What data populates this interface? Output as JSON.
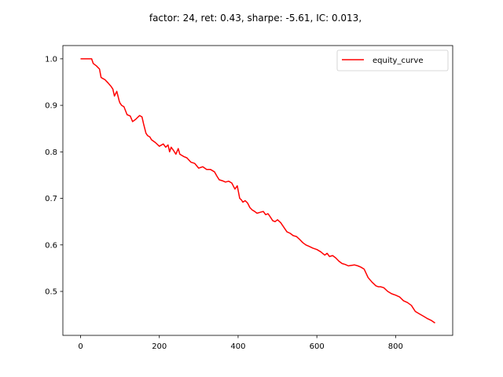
{
  "chart_data": {
    "type": "line",
    "title": "factor: 24, ret: 0.43, sharpe: -5.61, IC: 0.013,",
    "xlabel": "",
    "ylabel": "",
    "xlim": [
      -45,
      945
    ],
    "ylim": [
      0.4055,
      1.0285
    ],
    "xticks": [
      0,
      200,
      400,
      600,
      800
    ],
    "yticks": [
      0.5,
      0.6,
      0.7,
      0.8,
      0.9,
      1.0
    ],
    "xtick_labels": [
      "0",
      "200",
      "400",
      "600",
      "800"
    ],
    "ytick_labels": [
      "0.5",
      "0.6",
      "0.7",
      "0.8",
      "0.9",
      "1.0"
    ],
    "grid": false,
    "legend_position": "top-right",
    "series": [
      {
        "name": "equity_curve",
        "color": "#ff0000",
        "x": [
          0,
          10,
          20,
          28,
          32,
          40,
          48,
          52,
          56,
          62,
          70,
          78,
          82,
          86,
          92,
          98,
          100,
          104,
          110,
          118,
          126,
          132,
          140,
          146,
          150,
          156,
          160,
          166,
          170,
          176,
          180,
          190,
          200,
          210,
          216,
          222,
          226,
          230,
          236,
          242,
          248,
          252,
          256,
          262,
          270,
          280,
          290,
          300,
          310,
          320,
          330,
          340,
          346,
          352,
          360,
          368,
          376,
          384,
          392,
          398,
          404,
          408,
          412,
          418,
          424,
          430,
          436,
          442,
          448,
          456,
          464,
          470,
          476,
          482,
          488,
          494,
          500,
          508,
          516,
          524,
          532,
          540,
          548,
          556,
          564,
          572,
          580,
          590,
          600,
          610,
          620,
          626,
          632,
          640,
          648,
          656,
          664,
          672,
          680,
          688,
          696,
          704,
          712,
          720,
          730,
          740,
          750,
          756,
          762,
          770,
          780,
          790,
          800,
          810,
          820,
          830,
          840,
          850,
          860,
          870,
          880,
          890,
          900
        ],
        "y": [
          1.0,
          1.0,
          1.0,
          1.0,
          0.99,
          0.985,
          0.978,
          0.96,
          0.958,
          0.955,
          0.948,
          0.94,
          0.935,
          0.92,
          0.93,
          0.91,
          0.905,
          0.9,
          0.897,
          0.88,
          0.877,
          0.865,
          0.87,
          0.875,
          0.878,
          0.875,
          0.86,
          0.84,
          0.835,
          0.832,
          0.826,
          0.82,
          0.812,
          0.817,
          0.81,
          0.815,
          0.8,
          0.81,
          0.803,
          0.795,
          0.807,
          0.795,
          0.793,
          0.79,
          0.787,
          0.778,
          0.775,
          0.765,
          0.768,
          0.762,
          0.762,
          0.757,
          0.748,
          0.74,
          0.738,
          0.735,
          0.737,
          0.733,
          0.72,
          0.727,
          0.7,
          0.697,
          0.692,
          0.695,
          0.69,
          0.68,
          0.675,
          0.672,
          0.668,
          0.67,
          0.672,
          0.665,
          0.667,
          0.66,
          0.652,
          0.65,
          0.654,
          0.648,
          0.638,
          0.628,
          0.625,
          0.62,
          0.618,
          0.612,
          0.605,
          0.6,
          0.597,
          0.593,
          0.59,
          0.585,
          0.578,
          0.582,
          0.575,
          0.577,
          0.572,
          0.565,
          0.56,
          0.558,
          0.555,
          0.556,
          0.557,
          0.555,
          0.552,
          0.548,
          0.53,
          0.52,
          0.512,
          0.51,
          0.51,
          0.508,
          0.5,
          0.495,
          0.492,
          0.488,
          0.48,
          0.476,
          0.47,
          0.457,
          0.452,
          0.447,
          0.442,
          0.438,
          0.432
        ]
      }
    ]
  }
}
